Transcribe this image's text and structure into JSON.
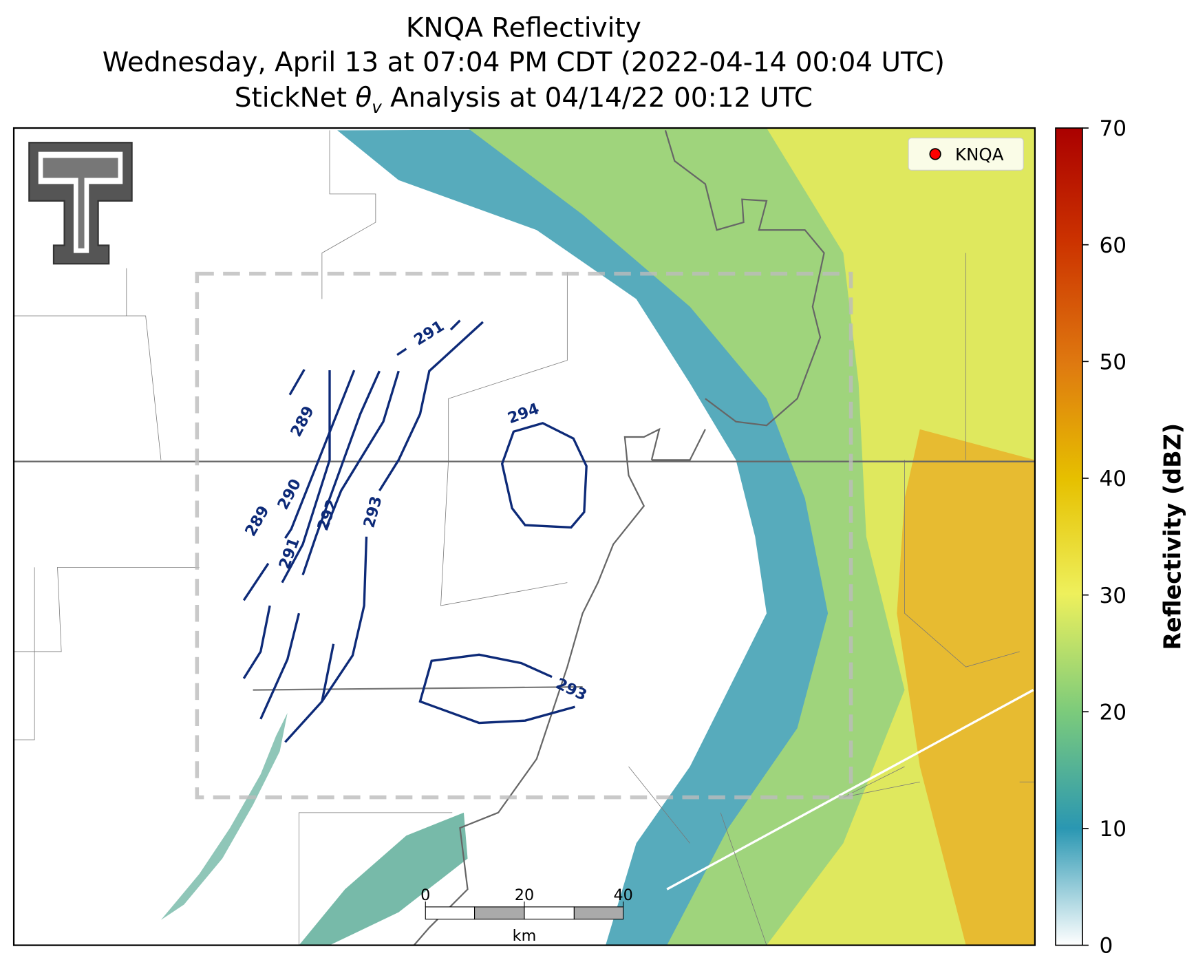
{
  "title": {
    "line1": "KNQA Reflectivity",
    "line2": "Wednesday, April 13 at 07:04 PM CDT (2022-04-14 00:04 UTC)",
    "line3": {
      "before": "StickNet ",
      "symbol": "θ",
      "subscript": "v",
      "after": " Analysis at 04/14/22 00:12 UTC"
    }
  },
  "legend": {
    "label": "KNQA",
    "color": "#ff0000"
  },
  "colorbar": {
    "label": "Reflectivity (dBZ)",
    "lim": [
      0,
      70
    ],
    "ticks": [
      0,
      10,
      20,
      30,
      40,
      50,
      60,
      70
    ]
  },
  "contour_labels": [
    291,
    289,
    289,
    290,
    291,
    292,
    293,
    294,
    293
  ],
  "scale_bar": {
    "ticks": [
      0,
      20,
      40
    ],
    "unit": "km"
  }
}
